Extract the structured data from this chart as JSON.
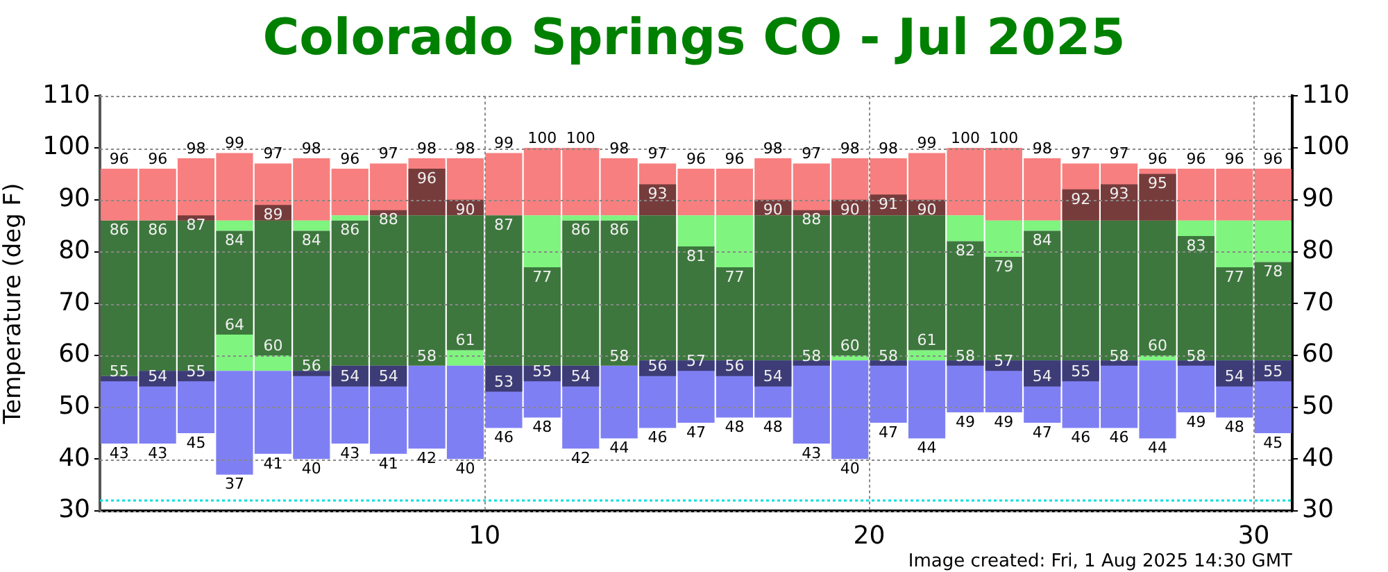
{
  "chart_data": {
    "type": "bar",
    "title": "Colorado Springs CO - Jul 2025",
    "ylabel": "Temperature (deg F)",
    "x": [
      0.5,
      1.5,
      2.5,
      3.5,
      4.5,
      5.5,
      6.5,
      7.5,
      8.5,
      9.5,
      10.5,
      11.5,
      12.5,
      13.5,
      14.5,
      15.5,
      16.5,
      17.5,
      18.5,
      19.5,
      20.5,
      21.5,
      22.5,
      23.5,
      24.5,
      25.5,
      26.5,
      27.5,
      28.5,
      29.5,
      30.5
    ],
    "xlim": [
      0,
      31
    ],
    "xticks": [
      10,
      20,
      30
    ],
    "ylim": [
      30,
      110
    ],
    "yticks": [
      30,
      40,
      50,
      60,
      70,
      80,
      90,
      100,
      110
    ],
    "y2lim": [
      30,
      110
    ],
    "y2ticks": [
      30,
      40,
      50,
      60,
      70,
      80,
      90,
      100,
      110
    ],
    "grid": true,
    "series": [
      {
        "color": "#f77f7f",
        "base": [
          86,
          86,
          86,
          86,
          86,
          86,
          87,
          87,
          87,
          87,
          87,
          87,
          87,
          87,
          87,
          87,
          87,
          87,
          87,
          87,
          87,
          87,
          87,
          86,
          86,
          86,
          86,
          86,
          86,
          86,
          86
        ],
        "values": [
          10,
          10,
          12,
          13,
          11,
          12,
          9,
          10,
          11,
          11,
          12,
          13,
          13,
          11,
          10,
          9,
          9,
          11,
          10,
          11,
          11,
          12,
          13,
          14,
          12,
          11,
          11,
          10,
          10,
          10,
          10
        ],
        "value_labels": [
          "96",
          "96",
          "98",
          "99",
          "97",
          "98",
          "96",
          "97",
          "98",
          "98",
          "99",
          "100",
          "100",
          "98",
          "97",
          "96",
          "96",
          "98",
          "97",
          "98",
          "98",
          "99",
          "100",
          "100",
          "98",
          "97",
          "97",
          "96",
          "96",
          "96",
          "96"
        ]
      },
      {
        "color": "#7ff47f",
        "base": [
          null,
          null,
          null,
          84,
          null,
          84,
          86,
          null,
          null,
          null,
          null,
          77,
          86,
          86,
          null,
          81,
          77,
          null,
          null,
          null,
          null,
          null,
          82,
          79,
          84,
          null,
          null,
          null,
          83,
          77,
          78
        ],
        "values": [
          null,
          null,
          null,
          2,
          null,
          2,
          1,
          null,
          null,
          null,
          null,
          10,
          1,
          1,
          null,
          6,
          10,
          null,
          null,
          null,
          null,
          null,
          5,
          7,
          2,
          null,
          null,
          null,
          3,
          9,
          8
        ]
      },
      {
        "color": "#7ff47f",
        "base": [
          null,
          null,
          null,
          57,
          57,
          null,
          null,
          null,
          null,
          58,
          null,
          null,
          null,
          null,
          null,
          null,
          null,
          null,
          null,
          59,
          null,
          59,
          null,
          null,
          null,
          null,
          null,
          59,
          null,
          null,
          null
        ],
        "values": [
          null,
          null,
          null,
          7,
          3,
          null,
          null,
          null,
          null,
          3,
          null,
          null,
          null,
          null,
          null,
          null,
          null,
          null,
          null,
          1,
          null,
          2,
          null,
          null,
          null,
          null,
          null,
          1,
          null,
          null,
          null
        ]
      },
      {
        "color": "#7f7ff4",
        "base": [
          56,
          57,
          57,
          57,
          57,
          57,
          58,
          58,
          58,
          58,
          58,
          58,
          58,
          58,
          59,
          59,
          59,
          59,
          59,
          59,
          59,
          59,
          59,
          59,
          59,
          59,
          59,
          59,
          59,
          59,
          59
        ],
        "values": [
          -13,
          -14,
          -12,
          -20,
          -16,
          -17,
          -15,
          -17,
          -16,
          -18,
          -12,
          -10,
          -16,
          -14,
          -13,
          -12,
          -11,
          -11,
          -16,
          -19,
          -12,
          -15,
          -10,
          -10,
          -12,
          -13,
          -13,
          -15,
          -10,
          -11,
          -14
        ],
        "value_labels": [
          "43",
          "43",
          "45",
          "37",
          "41",
          "40",
          "43",
          "41",
          "42",
          "40",
          "46",
          "48",
          "42",
          "44",
          "46",
          "47",
          "48",
          "48",
          "43",
          "40",
          "47",
          "44",
          "49",
          "49",
          "47",
          "46",
          "46",
          "44",
          "49",
          "48",
          "45"
        ]
      },
      {
        "color": "#763c3c",
        "base": [
          null,
          null,
          86,
          null,
          86,
          null,
          null,
          87,
          87,
          87,
          null,
          null,
          null,
          null,
          87,
          null,
          null,
          87,
          87,
          87,
          87,
          87,
          null,
          null,
          null,
          86,
          86,
          86,
          null,
          null,
          null
        ],
        "values": [
          null,
          null,
          1,
          null,
          3,
          null,
          null,
          1,
          9,
          3,
          null,
          null,
          null,
          null,
          6,
          null,
          null,
          3,
          1,
          3,
          4,
          3,
          null,
          null,
          null,
          6,
          7,
          9,
          null,
          null,
          null
        ]
      },
      {
        "color": "#3d773d",
        "base": [
          56,
          57,
          57,
          64,
          60,
          57,
          58,
          58,
          58,
          61,
          58,
          58,
          58,
          58,
          59,
          59,
          59,
          59,
          59,
          60,
          59,
          61,
          59,
          59,
          59,
          59,
          59,
          60,
          59,
          59,
          59
        ],
        "values": [
          30,
          29,
          29,
          20,
          26,
          27,
          28,
          29,
          29,
          26,
          29,
          19,
          28,
          28,
          28,
          22,
          18,
          28,
          28,
          27,
          28,
          26,
          23,
          20,
          25,
          27,
          27,
          26,
          24,
          18,
          19
        ]
      },
      {
        "color": "#3d3c76",
        "base": [
          56,
          57,
          57,
          null,
          null,
          57,
          58,
          58,
          null,
          null,
          58,
          58,
          58,
          null,
          59,
          59,
          59,
          59,
          59,
          null,
          59,
          null,
          59,
          59,
          59,
          59,
          59,
          null,
          59,
          59,
          59
        ],
        "values": [
          -1,
          -3,
          -2,
          null,
          null,
          -1,
          -4,
          -4,
          null,
          null,
          -5,
          -3,
          -4,
          null,
          -3,
          -2,
          -3,
          -5,
          -1,
          null,
          -1,
          null,
          -1,
          -2,
          -5,
          -4,
          -1,
          null,
          -1,
          -5,
          -4
        ]
      }
    ],
    "ref_lines": [
      {
        "axis": "y",
        "value": 32,
        "color": "#00e0e0",
        "line_style": "dotted"
      }
    ],
    "annotations": [
      {
        "text": "86",
        "x": 0.5,
        "y": 86
      },
      {
        "text": "86",
        "x": 1.5,
        "y": 86
      },
      {
        "text": "87",
        "x": 2.5,
        "y": 87
      },
      {
        "text": "84",
        "x": 3.5,
        "y": 84
      },
      {
        "text": "89",
        "x": 4.5,
        "y": 89
      },
      {
        "text": "84",
        "x": 5.5,
        "y": 84
      },
      {
        "text": "86",
        "x": 6.5,
        "y": 86
      },
      {
        "text": "88",
        "x": 7.5,
        "y": 88
      },
      {
        "text": "96",
        "x": 8.5,
        "y": 96
      },
      {
        "text": "90",
        "x": 9.5,
        "y": 90
      },
      {
        "text": "87",
        "x": 10.5,
        "y": 87
      },
      {
        "text": "77",
        "x": 11.5,
        "y": 77
      },
      {
        "text": "86",
        "x": 12.5,
        "y": 86
      },
      {
        "text": "86",
        "x": 13.5,
        "y": 86
      },
      {
        "text": "93",
        "x": 14.5,
        "y": 93
      },
      {
        "text": "81",
        "x": 15.5,
        "y": 81
      },
      {
        "text": "77",
        "x": 16.5,
        "y": 77
      },
      {
        "text": "90",
        "x": 17.5,
        "y": 90
      },
      {
        "text": "88",
        "x": 18.5,
        "y": 88
      },
      {
        "text": "90",
        "x": 19.5,
        "y": 90
      },
      {
        "text": "91",
        "x": 20.5,
        "y": 91
      },
      {
        "text": "90",
        "x": 21.5,
        "y": 90
      },
      {
        "text": "82",
        "x": 22.5,
        "y": 82
      },
      {
        "text": "79",
        "x": 23.5,
        "y": 79
      },
      {
        "text": "84",
        "x": 24.5,
        "y": 84
      },
      {
        "text": "92",
        "x": 25.5,
        "y": 92
      },
      {
        "text": "93",
        "x": 26.5,
        "y": 93
      },
      {
        "text": "95",
        "x": 27.5,
        "y": 95
      },
      {
        "text": "83",
        "x": 28.5,
        "y": 83
      },
      {
        "text": "77",
        "x": 29.5,
        "y": 77
      },
      {
        "text": "78",
        "x": 30.5,
        "y": 78
      },
      {
        "text": "55",
        "x": 0.5,
        "y": 55
      },
      {
        "text": "54",
        "x": 1.5,
        "y": 54
      },
      {
        "text": "55",
        "x": 2.5,
        "y": 55
      },
      {
        "text": "64",
        "x": 3.5,
        "y": 64
      },
      {
        "text": "60",
        "x": 4.5,
        "y": 60
      },
      {
        "text": "56",
        "x": 5.5,
        "y": 56
      },
      {
        "text": "54",
        "x": 6.5,
        "y": 54
      },
      {
        "text": "54",
        "x": 7.5,
        "y": 54
      },
      {
        "text": "58",
        "x": 8.5,
        "y": 58
      },
      {
        "text": "61",
        "x": 9.5,
        "y": 61
      },
      {
        "text": "53",
        "x": 10.5,
        "y": 53
      },
      {
        "text": "55",
        "x": 11.5,
        "y": 55
      },
      {
        "text": "54",
        "x": 12.5,
        "y": 54
      },
      {
        "text": "58",
        "x": 13.5,
        "y": 58
      },
      {
        "text": "56",
        "x": 14.5,
        "y": 56
      },
      {
        "text": "57",
        "x": 15.5,
        "y": 57
      },
      {
        "text": "56",
        "x": 16.5,
        "y": 56
      },
      {
        "text": "54",
        "x": 17.5,
        "y": 54
      },
      {
        "text": "58",
        "x": 18.5,
        "y": 58
      },
      {
        "text": "60",
        "x": 19.5,
        "y": 60
      },
      {
        "text": "58",
        "x": 20.5,
        "y": 58
      },
      {
        "text": "61",
        "x": 21.5,
        "y": 61
      },
      {
        "text": "58",
        "x": 22.5,
        "y": 58
      },
      {
        "text": "57",
        "x": 23.5,
        "y": 57
      },
      {
        "text": "54",
        "x": 24.5,
        "y": 54
      },
      {
        "text": "55",
        "x": 25.5,
        "y": 55
      },
      {
        "text": "58",
        "x": 26.5,
        "y": 58
      },
      {
        "text": "60",
        "x": 27.5,
        "y": 60
      },
      {
        "text": "58",
        "x": 28.5,
        "y": 58
      },
      {
        "text": "54",
        "x": 29.5,
        "y": 54
      },
      {
        "text": "55",
        "x": 30.5,
        "y": 55
      },
      "Image created: Fri, 1 Aug 2025 14:30 GMT"
    ]
  }
}
